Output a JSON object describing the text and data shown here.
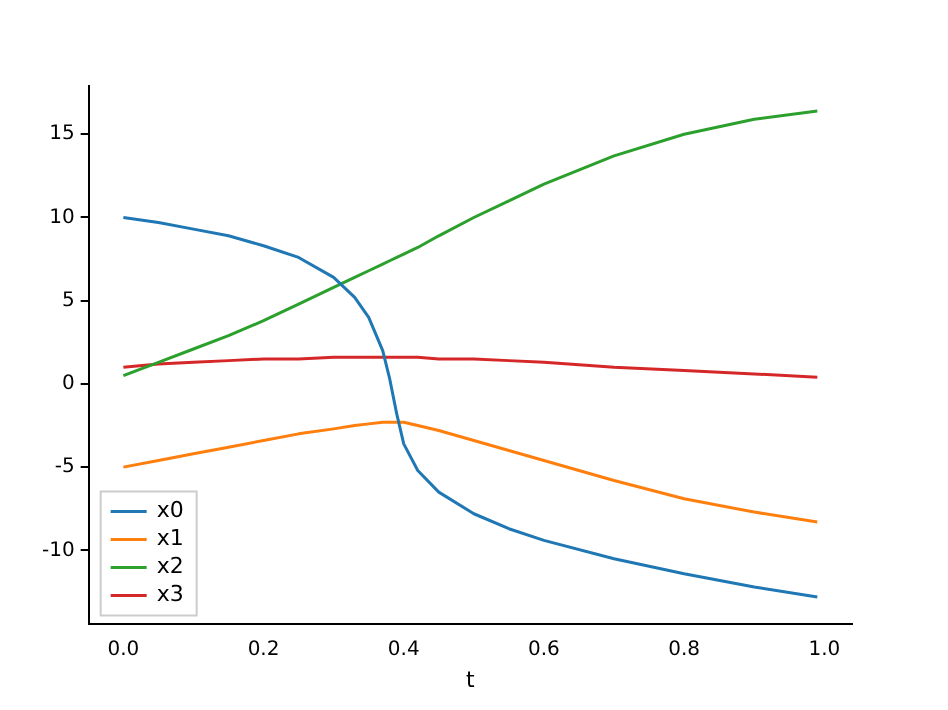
{
  "chart_data": {
    "type": "line",
    "xlabel": "t",
    "x": [
      0,
      0.05,
      0.1,
      0.15,
      0.2,
      0.25,
      0.3,
      0.33,
      0.35,
      0.37,
      0.38,
      0.39,
      0.4,
      0.42,
      0.45,
      0.5,
      0.55,
      0.6,
      0.7,
      0.8,
      0.9,
      0.99
    ],
    "series": [
      {
        "name": "x0",
        "color": "#1f77b4",
        "values": [
          10,
          9.7,
          9.3,
          8.9,
          8.3,
          7.6,
          6.4,
          5.2,
          4,
          2,
          0.3,
          -1.8,
          -3.6,
          -5.2,
          -6.5,
          -7.8,
          -8.7,
          -9.4,
          -10.5,
          -11.4,
          -12.2,
          -12.8
        ]
      },
      {
        "name": "x1",
        "color": "#ff7f0e",
        "values": [
          -5,
          -4.6,
          -4.2,
          -3.8,
          -3.4,
          -3.0,
          -2.7,
          -2.5,
          -2.4,
          -2.3,
          -2.3,
          -2.3,
          -2.3,
          -2.5,
          -2.8,
          -3.4,
          -4.0,
          -4.6,
          -5.8,
          -6.9,
          -7.7,
          -8.3
        ]
      },
      {
        "name": "x2",
        "color": "#2ca02c",
        "values": [
          0.5,
          1.3,
          2.1,
          2.9,
          3.8,
          4.8,
          5.8,
          6.4,
          6.8,
          7.2,
          7.4,
          7.6,
          7.8,
          8.2,
          8.9,
          10.0,
          11.0,
          12.0,
          13.7,
          15.0,
          15.9,
          16.4
        ]
      },
      {
        "name": "x3",
        "color": "#d62728",
        "values": [
          1.0,
          1.2,
          1.3,
          1.4,
          1.5,
          1.5,
          1.6,
          1.6,
          1.6,
          1.6,
          1.6,
          1.6,
          1.6,
          1.6,
          1.5,
          1.5,
          1.4,
          1.3,
          1.0,
          0.8,
          0.6,
          0.4
        ]
      }
    ],
    "xlim": [
      -0.0495,
      1.0395
    ],
    "xticks": [
      {
        "value": 0,
        "label": "0.0"
      },
      {
        "value": 0.2,
        "label": "0.2"
      },
      {
        "value": 0.4,
        "label": "0.4"
      },
      {
        "value": 0.6,
        "label": "0.6"
      },
      {
        "value": 0.8,
        "label": "0.8"
      },
      {
        "value": 1,
        "label": "1.0"
      }
    ],
    "ylim": [
      -14.4,
      17.9
    ],
    "yticks": [
      -10,
      -5,
      0,
      5,
      10,
      15
    ],
    "legend": "bottom left",
    "grid": false,
    "line_style": "solid",
    "marker": "none"
  }
}
